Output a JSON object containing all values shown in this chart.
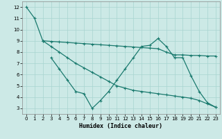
{
  "xlabel": "Humidex (Indice chaleur)",
  "ylabel": "",
  "background_color": "#cce9e6",
  "grid_color": "#a8d4d0",
  "line_color": "#1a7a6e",
  "xlim": [
    -0.5,
    23.5
  ],
  "ylim": [
    2.5,
    12.5
  ],
  "xticks": [
    0,
    1,
    2,
    3,
    4,
    5,
    6,
    7,
    8,
    9,
    10,
    11,
    12,
    13,
    14,
    15,
    16,
    17,
    18,
    19,
    20,
    21,
    22,
    23
  ],
  "yticks": [
    3,
    4,
    5,
    6,
    7,
    8,
    9,
    10,
    11,
    12
  ],
  "series": [
    {
      "x": [
        0,
        1,
        2
      ],
      "y": [
        12,
        11,
        9
      ]
    },
    {
      "x": [
        3,
        4,
        5,
        6,
        7,
        8,
        9,
        10,
        11,
        12,
        13,
        14,
        15,
        16,
        17,
        18,
        19,
        20,
        21,
        22,
        23
      ],
      "y": [
        7.5,
        6.5,
        5.5,
        4.5,
        4.3,
        3.0,
        3.7,
        4.5,
        5.5,
        6.5,
        7.5,
        8.5,
        8.6,
        9.2,
        8.5,
        7.5,
        7.5,
        5.9,
        4.5,
        3.5,
        3.1
      ]
    },
    {
      "x": [
        2,
        3,
        4,
        5,
        6,
        7,
        8,
        9,
        10,
        11,
        12,
        13,
        14,
        15,
        16,
        17,
        18,
        19,
        20,
        21,
        22,
        23
      ],
      "y": [
        9.0,
        8.95,
        8.9,
        8.85,
        8.8,
        8.75,
        8.7,
        8.65,
        8.6,
        8.55,
        8.5,
        8.45,
        8.4,
        8.35,
        8.3,
        8.0,
        7.75,
        7.75,
        7.7,
        7.7,
        7.65,
        7.65
      ]
    },
    {
      "comment": "steeper diagonal: x=2 y=9 to x=23 y=3.1",
      "x": [
        2,
        3,
        4,
        5,
        6,
        7,
        8,
        9,
        10,
        11,
        12,
        13,
        14,
        15,
        16,
        17,
        18,
        19,
        20,
        21,
        22,
        23
      ],
      "y": [
        9.0,
        8.5,
        8.0,
        7.5,
        7.0,
        6.6,
        6.2,
        5.8,
        5.4,
        5.0,
        4.8,
        4.6,
        4.5,
        4.4,
        4.3,
        4.2,
        4.1,
        4.0,
        3.9,
        3.7,
        3.4,
        3.1
      ]
    }
  ]
}
